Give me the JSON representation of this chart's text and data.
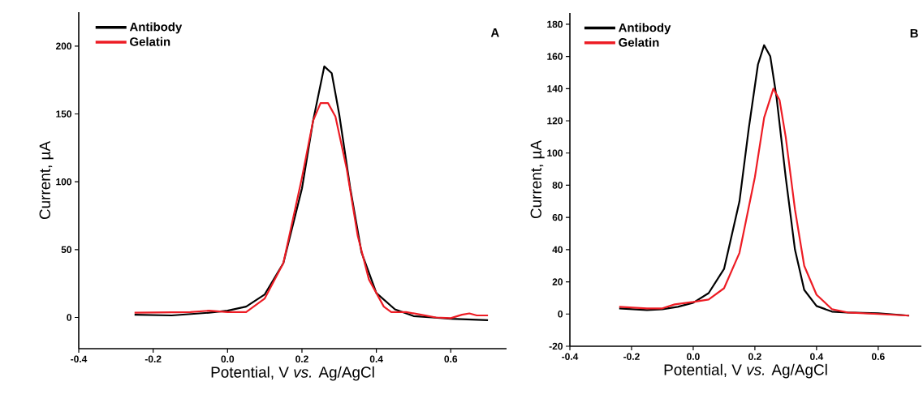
{
  "chart_data": [
    {
      "type": "line",
      "xlabel": "Potential, V *vs.* Ag/AgCl",
      "ylabel": "Current, µA",
      "annotations": [
        "A"
      ],
      "legend": "top left",
      "xlim": [
        -0.4,
        0.75
      ],
      "ylim": [
        -23,
        225
      ],
      "xticks": [
        -0.4,
        -0.2,
        {
          "value": 0,
          "label": "0.0"
        },
        0.2,
        0.4,
        0.6
      ],
      "yticks": [
        0,
        50,
        100,
        150,
        200
      ],
      "series": [
        {
          "name": "Antibody",
          "color": "#000000",
          "x": [
            -0.25,
            -0.15,
            -0.05,
            0.0,
            0.05,
            0.1,
            0.15,
            0.2,
            0.23,
            0.26,
            0.28,
            0.3,
            0.33,
            0.36,
            0.4,
            0.45,
            0.5,
            0.55,
            0.6,
            0.7
          ],
          "values": [
            2,
            1.5,
            3.5,
            5,
            8,
            17,
            40,
            95,
            145,
            185,
            180,
            150,
            95,
            48,
            18,
            6,
            1,
            0,
            -1,
            -2
          ]
        },
        {
          "name": "Gelatin",
          "color": "#ed1c24",
          "x": [
            -0.25,
            -0.1,
            -0.05,
            0.0,
            0.05,
            0.1,
            0.15,
            0.2,
            0.23,
            0.25,
            0.27,
            0.29,
            0.32,
            0.35,
            0.38,
            0.42,
            0.44,
            0.48,
            0.52,
            0.56,
            0.6,
            0.63,
            0.65,
            0.67,
            0.7
          ],
          "values": [
            3.5,
            4,
            5,
            4,
            4,
            14,
            40,
            103,
            145,
            158,
            158,
            148,
            110,
            60,
            28,
            8,
            4,
            4,
            2,
            0,
            -0.5,
            2,
            3,
            1.5,
            1.5
          ]
        }
      ]
    },
    {
      "type": "line",
      "xlabel": "Potential, V *vs.* Ag/AgCl",
      "ylabel": "Current, µA",
      "annotations": [
        "B"
      ],
      "legend": "top left",
      "xlim": [
        -0.4,
        0.74
      ],
      "ylim": [
        -20,
        187
      ],
      "xticks": [
        -0.4,
        -0.2,
        {
          "value": 0,
          "label": "0.0"
        },
        0.2,
        0.4,
        0.6
      ],
      "yticks": [
        -20,
        0,
        20,
        40,
        60,
        80,
        100,
        120,
        140,
        160,
        180
      ],
      "series": [
        {
          "name": "Antibody",
          "color": "#000000",
          "x": [
            -0.24,
            -0.15,
            -0.1,
            -0.05,
            0.0,
            0.05,
            0.1,
            0.15,
            0.18,
            0.21,
            0.23,
            0.25,
            0.27,
            0.3,
            0.33,
            0.36,
            0.4,
            0.45,
            0.5,
            0.6,
            0.7
          ],
          "values": [
            3.5,
            2.5,
            3,
            4.5,
            7,
            13,
            28,
            70,
            115,
            155,
            167,
            160,
            135,
            85,
            40,
            15,
            5,
            1.5,
            1,
            0.5,
            -1
          ]
        },
        {
          "name": "Gelatin",
          "color": "#ed1c24",
          "x": [
            -0.24,
            -0.15,
            -0.1,
            -0.06,
            0.0,
            0.05,
            0.1,
            0.15,
            0.2,
            0.23,
            0.26,
            0.28,
            0.3,
            0.33,
            0.36,
            0.4,
            0.45,
            0.5,
            0.6,
            0.7
          ],
          "values": [
            4.5,
            3.5,
            3.5,
            6,
            7.5,
            9,
            16,
            38,
            85,
            122,
            140,
            133,
            110,
            65,
            30,
            12,
            3,
            1,
            0,
            -1
          ]
        }
      ]
    }
  ]
}
